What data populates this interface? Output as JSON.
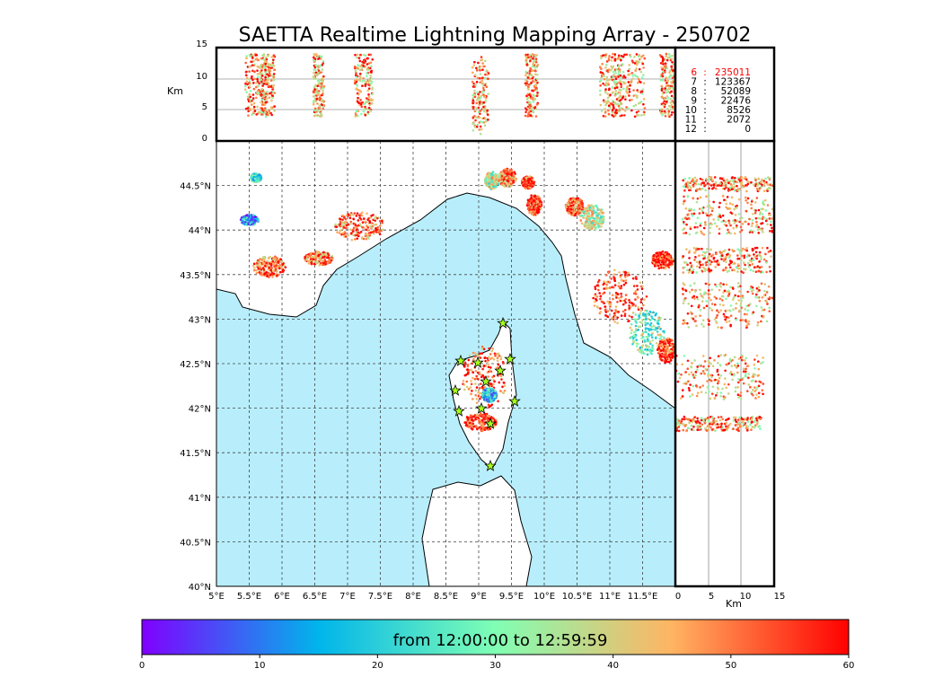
{
  "chart_data": {
    "type": "scatter",
    "title": "SAETTA Realtime Lightning Mapping Array - 250702",
    "map": {
      "lon_range": [
        5,
        12
      ],
      "lat_range": [
        40,
        45
      ],
      "x_ticks": [
        "5°E",
        "5.5°E",
        "6°E",
        "6.5°E",
        "7°E",
        "7.5°E",
        "8°E",
        "8.5°E",
        "9°E",
        "9.5°E",
        "10°E",
        "10.5°E",
        "11°E",
        "11.5°E"
      ],
      "y_ticks": [
        "40°N",
        "40.5°N",
        "41°N",
        "41.5°N",
        "42°N",
        "42.5°N",
        "43°N",
        "43.5°N",
        "44°N",
        "44.5°N"
      ]
    },
    "altitude_panel": {
      "ylabel": "Km",
      "ylim": [
        0,
        15
      ],
      "y_ticks": [
        "0",
        "5",
        "10",
        "15"
      ]
    },
    "side_panel": {
      "xlabel": "Km",
      "xlim": [
        0,
        15
      ],
      "x_ticks": [
        "0",
        "5",
        "10",
        "15"
      ]
    },
    "station_counts": [
      {
        "stations": "6",
        "sep": ":",
        "count": "235011",
        "highlight": true
      },
      {
        "stations": "7",
        "sep": ":",
        "count": "123367",
        "highlight": false
      },
      {
        "stations": "8",
        "sep": ":",
        "count": "52089",
        "highlight": false
      },
      {
        "stations": "9",
        "sep": ":",
        "count": "22476",
        "highlight": false
      },
      {
        "stations": "10",
        "sep": ":",
        "count": "8526",
        "highlight": false
      },
      {
        "stations": "11",
        "sep": ":",
        "count": "2072",
        "highlight": false
      },
      {
        "stations": "12",
        "sep": ":",
        "count": "0",
        "highlight": false
      }
    ],
    "colorbar": {
      "label": "from 12:00:00 to 12:59:59",
      "range": [
        0,
        60
      ],
      "ticks": [
        "0",
        "10",
        "20",
        "30",
        "40",
        "50",
        "60"
      ],
      "colormap": [
        "#8000ff",
        "#00b5eb",
        "#80ffb4",
        "#ffb462",
        "#ff0000"
      ]
    },
    "colors": {
      "sea": "#b8eefc",
      "highlight": "#ff0000"
    }
  }
}
